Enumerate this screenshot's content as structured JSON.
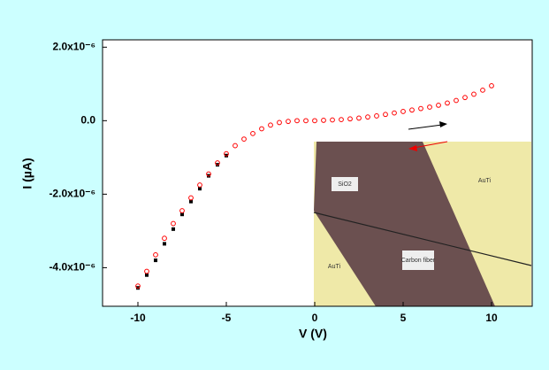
{
  "chart_data": {
    "type": "scatter",
    "x_label": "V (V)",
    "y_label": "I (µA)",
    "xlim": [
      -12,
      12.3
    ],
    "ylim": [
      -5.05e-06,
      2.2e-06
    ],
    "xticks": [
      -10,
      -5,
      0,
      5,
      10
    ],
    "yticks": [
      {
        "value": 2e-06,
        "label": "2.0x10⁻⁶"
      },
      {
        "value": 0,
        "label": "0.0"
      },
      {
        "value": -2e-06,
        "label": "-2.0x10⁻⁶"
      },
      {
        "value": -4e-06,
        "label": "-4.0x10⁻⁶"
      }
    ],
    "series": [
      {
        "color": "#000000",
        "marker": "square",
        "x": [
          -10,
          -9.5,
          -9,
          -8.5,
          -8,
          -7.5,
          -7,
          -6.5,
          -6,
          -5.5,
          -5
        ],
        "values": [
          -4.55e-06,
          -4.2e-06,
          -3.8e-06,
          -3.35e-06,
          -2.95e-06,
          -2.55e-06,
          -2.2e-06,
          -1.85e-06,
          -1.5e-06,
          -1.2e-06,
          -9.5e-07
        ]
      },
      {
        "color": "#ff0000",
        "marker": "circle",
        "x": [
          -10,
          -9.5,
          -9,
          -8.5,
          -8,
          -7.5,
          -7,
          -6.5,
          -6,
          -5.5,
          -5,
          -4.5,
          -4,
          -3.5,
          -3,
          -2.5,
          -2,
          -1.5,
          -1,
          -0.5,
          0,
          0.5,
          1,
          1.5,
          2,
          2.5,
          3,
          3.5,
          4,
          4.5,
          5,
          5.5,
          6,
          6.5,
          7,
          7.5,
          8,
          8.5,
          9,
          9.5,
          10
        ],
        "values": [
          -4.5e-06,
          -4.1e-06,
          -3.65e-06,
          -3.2e-06,
          -2.8e-06,
          -2.45e-06,
          -2.1e-06,
          -1.75e-06,
          -1.45e-06,
          -1.15e-06,
          -9e-07,
          -6.8e-07,
          -5e-07,
          -3.5e-07,
          -2.2e-07,
          -1.2e-07,
          -5e-08,
          -2e-08,
          0,
          0,
          0,
          1e-08,
          2e-08,
          3e-08,
          5e-08,
          7e-08,
          1e-07,
          1.3e-07,
          1.7e-07,
          2.1e-07,
          2.5e-07,
          2.9e-07,
          3.3e-07,
          3.7e-07,
          4.2e-07,
          4.8e-07,
          5.5e-07,
          6.3e-07,
          7.2e-07,
          8.3e-07,
          9.5e-07
        ]
      }
    ],
    "annotations": [
      "SiO2",
      "AuTi",
      "AuTi",
      "Carbon fiber"
    ]
  }
}
